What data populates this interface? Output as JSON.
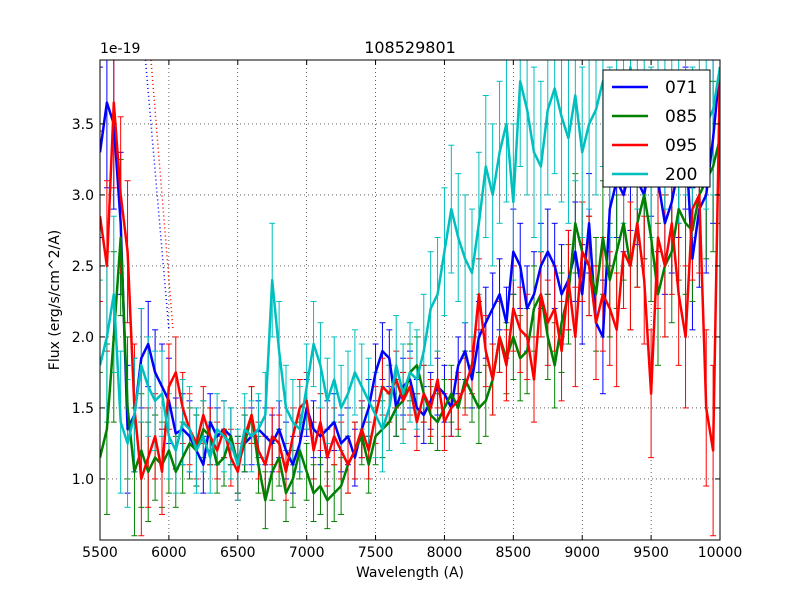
{
  "chart_data": {
    "type": "line",
    "title": "108529801",
    "xlabel": "Wavelength (A)",
    "ylabel": "Flux (erg/s/cm^2/A)",
    "y_offset_label": "1e-19",
    "xlim": [
      5500,
      10000
    ],
    "ylim": [
      0.57,
      3.95
    ],
    "x_ticks": [
      5500,
      6000,
      6500,
      7000,
      7500,
      8000,
      8500,
      9000,
      9500,
      10000
    ],
    "x_tick_labels": [
      "5500",
      "6000",
      "6500",
      "7000",
      "7500",
      "8000",
      "8500",
      "9000",
      "9500",
      "10000"
    ],
    "y_ticks": [
      1.0,
      1.5,
      2.0,
      2.5,
      3.0,
      3.5
    ],
    "y_tick_labels": [
      "1.0",
      "1.5",
      "2.0",
      "2.5",
      "3.0",
      "3.5"
    ],
    "grid": true,
    "legend_position": "top-right",
    "dotted_guides": [
      {
        "color": "#0000ff",
        "x": [
          5830,
          6000
        ],
        "y": [
          3.95,
          2.05
        ]
      },
      {
        "color": "#ff0000",
        "x": [
          5870,
          6030
        ],
        "y": [
          3.95,
          2.05
        ]
      }
    ],
    "series": [
      {
        "name": "071",
        "color": "#0000ff",
        "x": [
          5500,
          5550,
          5600,
          5650,
          5700,
          5750,
          5800,
          5850,
          5900,
          5950,
          6000,
          6050,
          6100,
          6150,
          6200,
          6250,
          6300,
          6350,
          6400,
          6450,
          6500,
          6550,
          6600,
          6650,
          6700,
          6750,
          6800,
          6850,
          6900,
          6950,
          7000,
          7050,
          7100,
          7150,
          7200,
          7250,
          7300,
          7350,
          7400,
          7450,
          7500,
          7550,
          7600,
          7650,
          7700,
          7750,
          7800,
          7850,
          7900,
          7950,
          8000,
          8050,
          8100,
          8150,
          8200,
          8250,
          8300,
          8350,
          8400,
          8450,
          8500,
          8550,
          8600,
          8650,
          8700,
          8750,
          8800,
          8850,
          8900,
          8950,
          9000,
          9050,
          9100,
          9150,
          9200,
          9250,
          9300,
          9350,
          9400,
          9450,
          9500,
          9550,
          9600,
          9650,
          9700,
          9750,
          9800,
          9850,
          9900,
          9950,
          10000
        ],
        "y": [
          3.3,
          3.65,
          3.5,
          2.8,
          1.35,
          1.45,
          1.85,
          1.95,
          1.75,
          1.65,
          1.55,
          1.32,
          1.35,
          1.3,
          1.2,
          1.1,
          1.4,
          1.3,
          1.35,
          1.3,
          1.1,
          1.25,
          1.3,
          1.35,
          1.3,
          1.25,
          1.35,
          1.2,
          1.1,
          1.25,
          1.5,
          1.35,
          1.3,
          1.35,
          1.4,
          1.25,
          1.3,
          1.15,
          1.35,
          1.5,
          1.75,
          1.9,
          1.85,
          1.5,
          1.65,
          1.7,
          1.5,
          1.45,
          1.55,
          1.65,
          1.6,
          1.5,
          1.8,
          1.9,
          1.7,
          2.0,
          2.1,
          2.2,
          2.3,
          2.1,
          2.6,
          2.5,
          2.2,
          2.3,
          2.5,
          2.6,
          2.5,
          2.3,
          2.4,
          2.6,
          2.3,
          2.8,
          2.1,
          2.0,
          2.9,
          3.1,
          3.0,
          3.2,
          3.1,
          3.0,
          3.3,
          3.1,
          2.8,
          2.95,
          3.2,
          3.4,
          2.55,
          2.9,
          3.0,
          3.4,
          3.9
        ],
        "err": [
          0.6,
          0.6,
          0.6,
          0.5,
          0.45,
          0.4,
          0.35,
          0.3,
          0.3,
          0.3,
          0.3,
          0.25,
          0.25,
          0.25,
          0.25,
          0.2,
          0.2,
          0.2,
          0.2,
          0.2,
          0.2,
          0.2,
          0.2,
          0.2,
          0.2,
          0.2,
          0.2,
          0.2,
          0.2,
          0.2,
          0.2,
          0.2,
          0.2,
          0.2,
          0.2,
          0.2,
          0.2,
          0.2,
          0.2,
          0.2,
          0.2,
          0.2,
          0.2,
          0.2,
          0.2,
          0.2,
          0.2,
          0.2,
          0.2,
          0.2,
          0.2,
          0.2,
          0.2,
          0.2,
          0.2,
          0.25,
          0.25,
          0.25,
          0.25,
          0.25,
          0.3,
          0.3,
          0.3,
          0.3,
          0.3,
          0.3,
          0.3,
          0.35,
          0.35,
          0.35,
          0.35,
          0.35,
          0.4,
          0.4,
          0.4,
          0.4,
          0.4,
          0.45,
          0.45,
          0.45,
          0.45,
          0.5,
          0.5,
          0.5,
          0.5,
          0.5,
          0.5,
          0.55,
          0.55,
          0.6,
          0.6
        ]
      },
      {
        "name": "085",
        "color": "#008000",
        "x": [
          5500,
          5550,
          5600,
          5650,
          5700,
          5750,
          5800,
          5850,
          5900,
          5950,
          6000,
          6050,
          6100,
          6150,
          6200,
          6250,
          6300,
          6350,
          6400,
          6450,
          6500,
          6550,
          6600,
          6650,
          6700,
          6750,
          6800,
          6850,
          6900,
          6950,
          7000,
          7050,
          7100,
          7150,
          7200,
          7250,
          7300,
          7350,
          7400,
          7450,
          7500,
          7550,
          7600,
          7650,
          7700,
          7750,
          7800,
          7850,
          7900,
          7950,
          8000,
          8050,
          8100,
          8150,
          8200,
          8250,
          8300,
          8350,
          8400,
          8450,
          8500,
          8550,
          8600,
          8650,
          8700,
          8750,
          8800,
          8850,
          8900,
          8950,
          9000,
          9050,
          9100,
          9150,
          9200,
          9250,
          9300,
          9350,
          9400,
          9450,
          9500,
          9550,
          9600,
          9650,
          9700,
          9750,
          9800,
          9850,
          9900,
          9950,
          10000
        ],
        "y": [
          1.15,
          1.35,
          2.0,
          2.7,
          1.5,
          1.05,
          1.2,
          1.05,
          1.15,
          1.1,
          1.2,
          1.05,
          1.15,
          1.25,
          1.2,
          1.35,
          1.3,
          1.1,
          1.15,
          1.3,
          1.1,
          1.25,
          1.45,
          1.1,
          0.85,
          1.05,
          1.15,
          0.9,
          1.0,
          1.2,
          1.05,
          0.9,
          0.95,
          0.85,
          0.9,
          0.95,
          1.1,
          1.2,
          1.3,
          1.1,
          1.3,
          1.35,
          1.4,
          1.5,
          1.55,
          1.75,
          1.8,
          1.6,
          1.45,
          1.4,
          1.5,
          1.6,
          1.5,
          1.7,
          1.6,
          1.5,
          1.55,
          1.7,
          2.0,
          1.85,
          2.0,
          1.85,
          1.9,
          2.2,
          2.3,
          2.0,
          1.8,
          2.1,
          2.3,
          2.8,
          2.6,
          2.5,
          2.3,
          2.7,
          2.4,
          2.6,
          2.8,
          2.5,
          2.8,
          3.0,
          2.7,
          2.3,
          2.5,
          2.6,
          2.9,
          2.8,
          2.75,
          3.0,
          3.1,
          3.2,
          3.4
        ],
        "err": [
          0.6,
          0.6,
          0.6,
          0.55,
          0.5,
          0.45,
          0.4,
          0.35,
          0.3,
          0.3,
          0.3,
          0.25,
          0.25,
          0.25,
          0.25,
          0.2,
          0.2,
          0.2,
          0.2,
          0.2,
          0.2,
          0.2,
          0.2,
          0.2,
          0.2,
          0.2,
          0.2,
          0.2,
          0.2,
          0.2,
          0.2,
          0.2,
          0.2,
          0.2,
          0.2,
          0.2,
          0.2,
          0.2,
          0.2,
          0.2,
          0.2,
          0.2,
          0.2,
          0.2,
          0.2,
          0.2,
          0.2,
          0.2,
          0.2,
          0.2,
          0.2,
          0.2,
          0.2,
          0.2,
          0.2,
          0.25,
          0.25,
          0.25,
          0.25,
          0.25,
          0.3,
          0.3,
          0.3,
          0.3,
          0.3,
          0.3,
          0.3,
          0.35,
          0.35,
          0.35,
          0.35,
          0.35,
          0.4,
          0.4,
          0.4,
          0.4,
          0.4,
          0.45,
          0.45,
          0.45,
          0.45,
          0.5,
          0.5,
          0.5,
          0.5,
          0.5,
          0.5,
          0.55,
          0.55,
          0.6,
          0.6
        ]
      },
      {
        "name": "095",
        "color": "#ff0000",
        "x": [
          5500,
          5550,
          5600,
          5650,
          5700,
          5750,
          5800,
          5850,
          5900,
          5950,
          6000,
          6050,
          6100,
          6150,
          6200,
          6250,
          6300,
          6350,
          6400,
          6450,
          6500,
          6550,
          6600,
          6650,
          6700,
          6750,
          6800,
          6850,
          6900,
          6950,
          7000,
          7050,
          7100,
          7150,
          7200,
          7250,
          7300,
          7350,
          7400,
          7450,
          7500,
          7550,
          7600,
          7650,
          7700,
          7750,
          7800,
          7850,
          7900,
          7950,
          8000,
          8050,
          8100,
          8150,
          8200,
          8250,
          8300,
          8350,
          8400,
          8450,
          8500,
          8550,
          8600,
          8650,
          8700,
          8750,
          8800,
          8850,
          8900,
          8950,
          9000,
          9050,
          9100,
          9150,
          9200,
          9250,
          9300,
          9350,
          9400,
          9450,
          9500,
          9550,
          9600,
          9650,
          9700,
          9750,
          9800,
          9850,
          9900,
          9950,
          10000
        ],
        "y": [
          2.85,
          2.5,
          3.65,
          3.0,
          2.6,
          1.5,
          1.0,
          1.15,
          1.3,
          1.05,
          1.65,
          1.75,
          1.5,
          1.35,
          1.25,
          1.45,
          1.3,
          1.2,
          1.35,
          1.15,
          1.05,
          1.3,
          1.45,
          1.2,
          1.1,
          1.3,
          1.25,
          1.05,
          1.3,
          1.5,
          1.55,
          1.2,
          1.4,
          1.15,
          1.3,
          1.2,
          1.1,
          1.2,
          1.35,
          1.2,
          1.45,
          1.65,
          1.6,
          1.7,
          1.55,
          1.65,
          1.4,
          1.6,
          1.5,
          1.7,
          1.4,
          1.5,
          1.55,
          1.65,
          1.8,
          2.3,
          1.9,
          1.7,
          2.0,
          1.8,
          2.2,
          2.05,
          2.0,
          1.7,
          2.3,
          2.1,
          2.2,
          1.9,
          2.4,
          2.0,
          2.6,
          2.5,
          2.1,
          2.3,
          2.2,
          2.05,
          2.6,
          2.5,
          2.8,
          2.4,
          1.6,
          2.7,
          2.5,
          2.8,
          2.3,
          2.0,
          2.9,
          3.0,
          1.5,
          1.2,
          3.9
        ],
        "err": [
          0.6,
          0.6,
          0.6,
          0.55,
          0.5,
          0.45,
          0.4,
          0.35,
          0.3,
          0.3,
          0.3,
          0.25,
          0.25,
          0.25,
          0.25,
          0.2,
          0.2,
          0.2,
          0.2,
          0.2,
          0.2,
          0.2,
          0.2,
          0.2,
          0.2,
          0.2,
          0.2,
          0.2,
          0.2,
          0.2,
          0.2,
          0.2,
          0.2,
          0.2,
          0.2,
          0.2,
          0.2,
          0.2,
          0.2,
          0.2,
          0.2,
          0.2,
          0.2,
          0.2,
          0.2,
          0.2,
          0.2,
          0.2,
          0.2,
          0.2,
          0.2,
          0.2,
          0.2,
          0.2,
          0.2,
          0.25,
          0.25,
          0.25,
          0.25,
          0.25,
          0.3,
          0.3,
          0.3,
          0.3,
          0.3,
          0.3,
          0.3,
          0.35,
          0.35,
          0.35,
          0.35,
          0.35,
          0.4,
          0.4,
          0.4,
          0.4,
          0.4,
          0.45,
          0.45,
          0.45,
          0.45,
          0.5,
          0.5,
          0.5,
          0.5,
          0.5,
          0.5,
          0.55,
          0.55,
          0.6,
          0.6
        ]
      },
      {
        "name": "200",
        "color": "#00bfbf",
        "x": [
          5500,
          5550,
          5600,
          5650,
          5700,
          5750,
          5800,
          5850,
          5900,
          5950,
          6000,
          6050,
          6100,
          6150,
          6200,
          6250,
          6300,
          6350,
          6400,
          6450,
          6500,
          6550,
          6600,
          6650,
          6700,
          6750,
          6800,
          6850,
          6900,
          6950,
          7000,
          7050,
          7100,
          7150,
          7200,
          7250,
          7300,
          7350,
          7400,
          7450,
          7500,
          7550,
          7600,
          7650,
          7700,
          7750,
          7800,
          7850,
          7900,
          7950,
          8000,
          8050,
          8100,
          8150,
          8200,
          8250,
          8300,
          8350,
          8400,
          8450,
          8500,
          8550,
          8600,
          8650,
          8700,
          8750,
          8800,
          8850,
          8900,
          8950,
          9000,
          9050,
          9100,
          9150,
          9200,
          9250,
          9300,
          9350,
          9400,
          9450,
          9500,
          9550,
          9600,
          9650,
          9700,
          9750,
          9800,
          9850,
          9900,
          9950,
          10000
        ],
        "y": [
          1.8,
          2.0,
          2.3,
          1.4,
          1.25,
          1.45,
          1.8,
          1.65,
          1.55,
          1.6,
          1.3,
          1.2,
          1.4,
          1.35,
          1.2,
          1.3,
          1.15,
          1.35,
          1.3,
          1.25,
          1.1,
          1.35,
          1.3,
          1.35,
          1.45,
          2.4,
          1.9,
          1.5,
          1.4,
          1.35,
          1.65,
          1.95,
          1.8,
          1.55,
          1.7,
          1.5,
          1.6,
          1.75,
          1.65,
          1.55,
          1.45,
          1.35,
          1.5,
          1.8,
          1.6,
          1.75,
          1.7,
          1.9,
          2.2,
          2.3,
          2.6,
          2.9,
          2.7,
          2.55,
          2.45,
          2.8,
          3.2,
          3.0,
          3.3,
          3.5,
          2.95,
          3.8,
          3.6,
          3.3,
          3.2,
          3.6,
          3.75,
          3.55,
          3.4,
          3.7,
          3.3,
          3.5,
          3.6,
          3.8,
          3.3,
          3.7,
          3.4,
          3.9,
          3.5,
          3.6,
          3.3,
          3.7,
          3.5,
          3.75,
          3.4,
          3.6,
          3.3,
          3.7,
          3.5,
          3.6,
          3.9
        ],
        "err": [
          0.6,
          0.6,
          0.55,
          0.5,
          0.45,
          0.4,
          0.4,
          0.35,
          0.35,
          0.3,
          0.3,
          0.3,
          0.3,
          0.3,
          0.3,
          0.25,
          0.25,
          0.25,
          0.25,
          0.25,
          0.25,
          0.25,
          0.25,
          0.25,
          0.3,
          0.4,
          0.35,
          0.3,
          0.3,
          0.3,
          0.3,
          0.3,
          0.3,
          0.3,
          0.3,
          0.3,
          0.3,
          0.3,
          0.3,
          0.3,
          0.3,
          0.3,
          0.3,
          0.35,
          0.35,
          0.35,
          0.35,
          0.4,
          0.4,
          0.4,
          0.45,
          0.45,
          0.45,
          0.45,
          0.45,
          0.5,
          0.5,
          0.5,
          0.5,
          0.55,
          0.55,
          0.6,
          0.6,
          0.6,
          0.6,
          0.6,
          0.6,
          0.6,
          0.6,
          0.6,
          0.6,
          0.6,
          0.6,
          0.6,
          0.6,
          0.6,
          0.6,
          0.6,
          0.6,
          0.6,
          0.6,
          0.6,
          0.6,
          0.6,
          0.6,
          0.6,
          0.6,
          0.6,
          0.6,
          0.6,
          0.6
        ]
      }
    ]
  }
}
